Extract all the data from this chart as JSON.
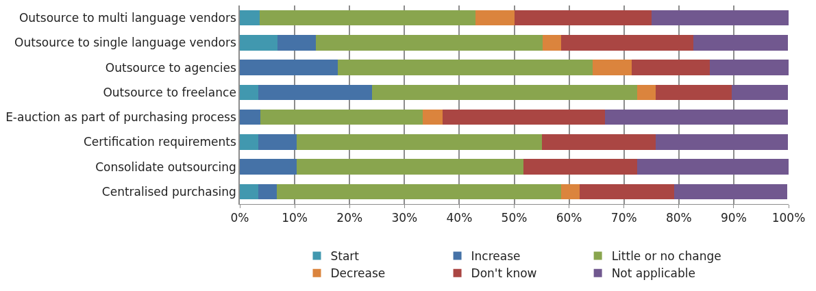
{
  "chart_data": {
    "type": "bar",
    "orientation": "horizontal",
    "stacked": true,
    "categories": [
      "Outsource to multi language vendors",
      "Outsource to single language vendors",
      "Outsource to agencies",
      "Outsource to freelance",
      "E-auction as part of purchasing process",
      "Certification requirements",
      "Consolidate outsourcing",
      "Centralised purchasing"
    ],
    "series": [
      {
        "name": "Start",
        "color": "#4198af",
        "values": [
          3.6,
          6.9,
          0,
          3.4,
          0,
          3.4,
          0,
          3.4
        ]
      },
      {
        "name": "Increase",
        "color": "#4572a7",
        "values": [
          0,
          6.9,
          17.9,
          20.7,
          3.7,
          6.9,
          10.3,
          3.4
        ]
      },
      {
        "name": "Little or no change",
        "color": "#89a54e",
        "values": [
          39.3,
          41.4,
          46.4,
          48.3,
          29.6,
          44.8,
          41.4,
          51.7
        ]
      },
      {
        "name": "Decrease",
        "color": "#db843d",
        "values": [
          7.1,
          3.4,
          7.1,
          3.4,
          3.7,
          0,
          0,
          3.4
        ]
      },
      {
        "name": "Don't know",
        "color": "#aa4643",
        "values": [
          25,
          24.1,
          14.3,
          13.8,
          29.6,
          20.7,
          20.7,
          17.2
        ]
      },
      {
        "name": "Not applicable",
        "color": "#71588f",
        "values": [
          25,
          17.2,
          14.3,
          10.3,
          33.3,
          24.1,
          27.6,
          20.7
        ]
      }
    ],
    "xlim": [
      0,
      100
    ],
    "xticks": [
      {
        "value": 0,
        "label": "0%"
      },
      {
        "value": 10,
        "label": "10%"
      },
      {
        "value": 20,
        "label": "20%"
      },
      {
        "value": 30,
        "label": "30%"
      },
      {
        "value": 40,
        "label": "40%"
      },
      {
        "value": 50,
        "label": "50%"
      },
      {
        "value": 60,
        "label": "60%"
      },
      {
        "value": 70,
        "label": "70%"
      },
      {
        "value": 80,
        "label": "80%"
      },
      {
        "value": 90,
        "label": "90%"
      },
      {
        "value": 100,
        "label": "100%"
      }
    ],
    "grid": "x",
    "legend": "bottom"
  }
}
